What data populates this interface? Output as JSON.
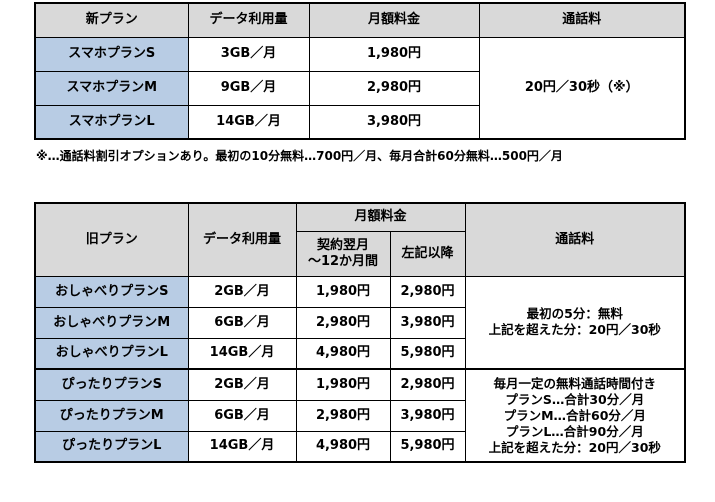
{
  "new_table": {
    "headers": [
      "新プラン",
      "データ利用量",
      "月額料金",
      "通話料"
    ],
    "rows": [
      {
        "plan": "スマホプランS",
        "data": "3GB／月",
        "fee": "1,980円"
      },
      {
        "plan": "スマホプランM",
        "data": "9GB／月",
        "fee": "2,980円"
      },
      {
        "plan": "スマホプランL",
        "data": "14GB／月",
        "fee": "3,980円"
      }
    ],
    "call_fee": "20円／30秒（※）"
  },
  "note": "※…通話料割引オプションあり。最初の10分無料…700円／月、毎月合計60分無料…500円／月",
  "old_table": {
    "headers": {
      "plan": "旧プラン",
      "data": "データ利用量",
      "monthly": "月額料金",
      "first_year": "契約翌月\n～12か月間",
      "after": "左記以降",
      "call": "通話料"
    },
    "rows": [
      {
        "plan": "おしゃべりプランS",
        "data": "2GB／月",
        "fee1": "1,980円",
        "fee2": "2,980円"
      },
      {
        "plan": "おしゃべりプランM",
        "data": "6GB／月",
        "fee1": "2,980円",
        "fee2": "3,980円"
      },
      {
        "plan": "おしゃべりプランL",
        "data": "14GB／月",
        "fee1": "4,980円",
        "fee2": "5,980円"
      },
      {
        "plan": "ぴったりプランS",
        "data": "2GB／月",
        "fee1": "1,980円",
        "fee2": "2,980円"
      },
      {
        "plan": "ぴったりプランM",
        "data": "6GB／月",
        "fee1": "2,980円",
        "fee2": "3,980円"
      },
      {
        "plan": "ぴったりプランL",
        "data": "14GB／月",
        "fee1": "4,980円",
        "fee2": "5,980円"
      }
    ],
    "call_oshaberi": [
      "最初の5分：無料",
      "上記を超えた分：20円／30秒"
    ],
    "call_pittari": [
      "毎月一定の無料通話時間付き",
      "プランS…合計30分／月",
      "プランM…合計60分／月",
      "プランL…合計90分／月",
      "上記を超えた分：20円／30秒"
    ]
  }
}
